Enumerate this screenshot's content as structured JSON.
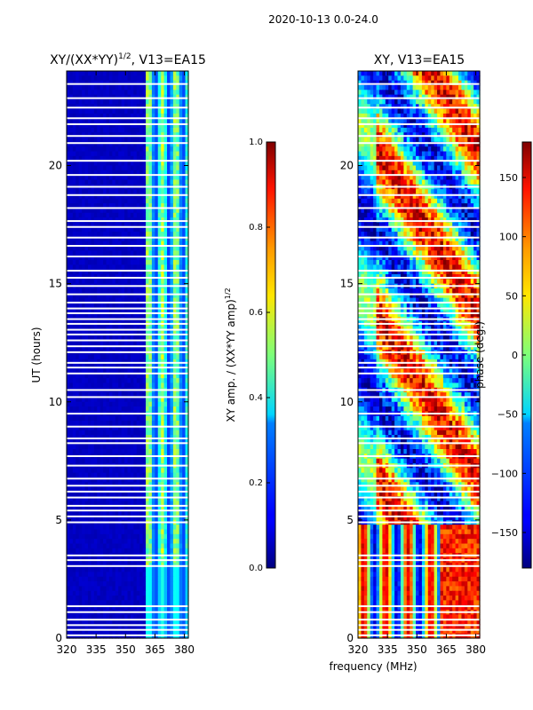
{
  "figure_title": "2020-10-13 0.0-24.0",
  "chart_data": [
    {
      "type": "heatmap",
      "title": "XY/(XX*YY)",
      "title_exponent": "1/2",
      "title_suffix": ", V13=EA15",
      "xlabel": "",
      "ylabel": "UT (hours)",
      "xlim": [
        320,
        382
      ],
      "ylim": [
        0,
        24
      ],
      "xticks": [
        320,
        335,
        350,
        365,
        380
      ],
      "yticks": [
        0,
        5,
        10,
        15,
        20
      ],
      "colorbar": {
        "label": "XY amp. / (XX*YY amp)",
        "label_exponent": "1/2",
        "range": [
          0.0,
          1.0
        ],
        "ticks": [
          "0.0",
          "0.2",
          "0.4",
          "0.6",
          "0.8",
          "1.0"
        ],
        "colormap": "jet"
      },
      "features": {
        "background_level": 0.05,
        "active_band_mhz": [
          360,
          382
        ],
        "active_level": 0.45
      }
    },
    {
      "type": "heatmap",
      "title": "XY, V13=EA15",
      "xlabel": "frequency (MHz)",
      "ylabel": "",
      "xlim": [
        320,
        382
      ],
      "ylim": [
        0,
        24
      ],
      "xticks": [
        320,
        335,
        350,
        365,
        380
      ],
      "yticks": [
        0,
        5,
        10,
        15,
        20
      ],
      "colorbar": {
        "label": "phase (deg.)",
        "range": [
          -180,
          180
        ],
        "ticks": [
          "150",
          "100",
          "50",
          "0",
          "−50",
          "−100",
          "−150"
        ],
        "tick_values": [
          150,
          100,
          50,
          0,
          -50,
          -100,
          -150
        ],
        "colormap": "jet"
      }
    }
  ],
  "flagged_hours": [
    0.12,
    0.35,
    0.55,
    0.78,
    1.1,
    1.35,
    3.05,
    3.3,
    3.5,
    4.9,
    5.15,
    5.4,
    5.6,
    5.95,
    6.2,
    6.45,
    6.75,
    7.3,
    7.7,
    8.25,
    8.45,
    8.95,
    9.5,
    10.2,
    10.5,
    11.2,
    11.45,
    11.65,
    12.1,
    12.35,
    12.6,
    12.85,
    13.05,
    13.3,
    13.5,
    13.75,
    13.95,
    14.2,
    14.55,
    14.9,
    15.25,
    15.55,
    16.15,
    16.6,
    16.95,
    17.4,
    17.65,
    18.2,
    18.75,
    19.1,
    19.6,
    20.2,
    20.95,
    21.25,
    21.75,
    22.0,
    22.45,
    22.85,
    23.45
  ]
}
